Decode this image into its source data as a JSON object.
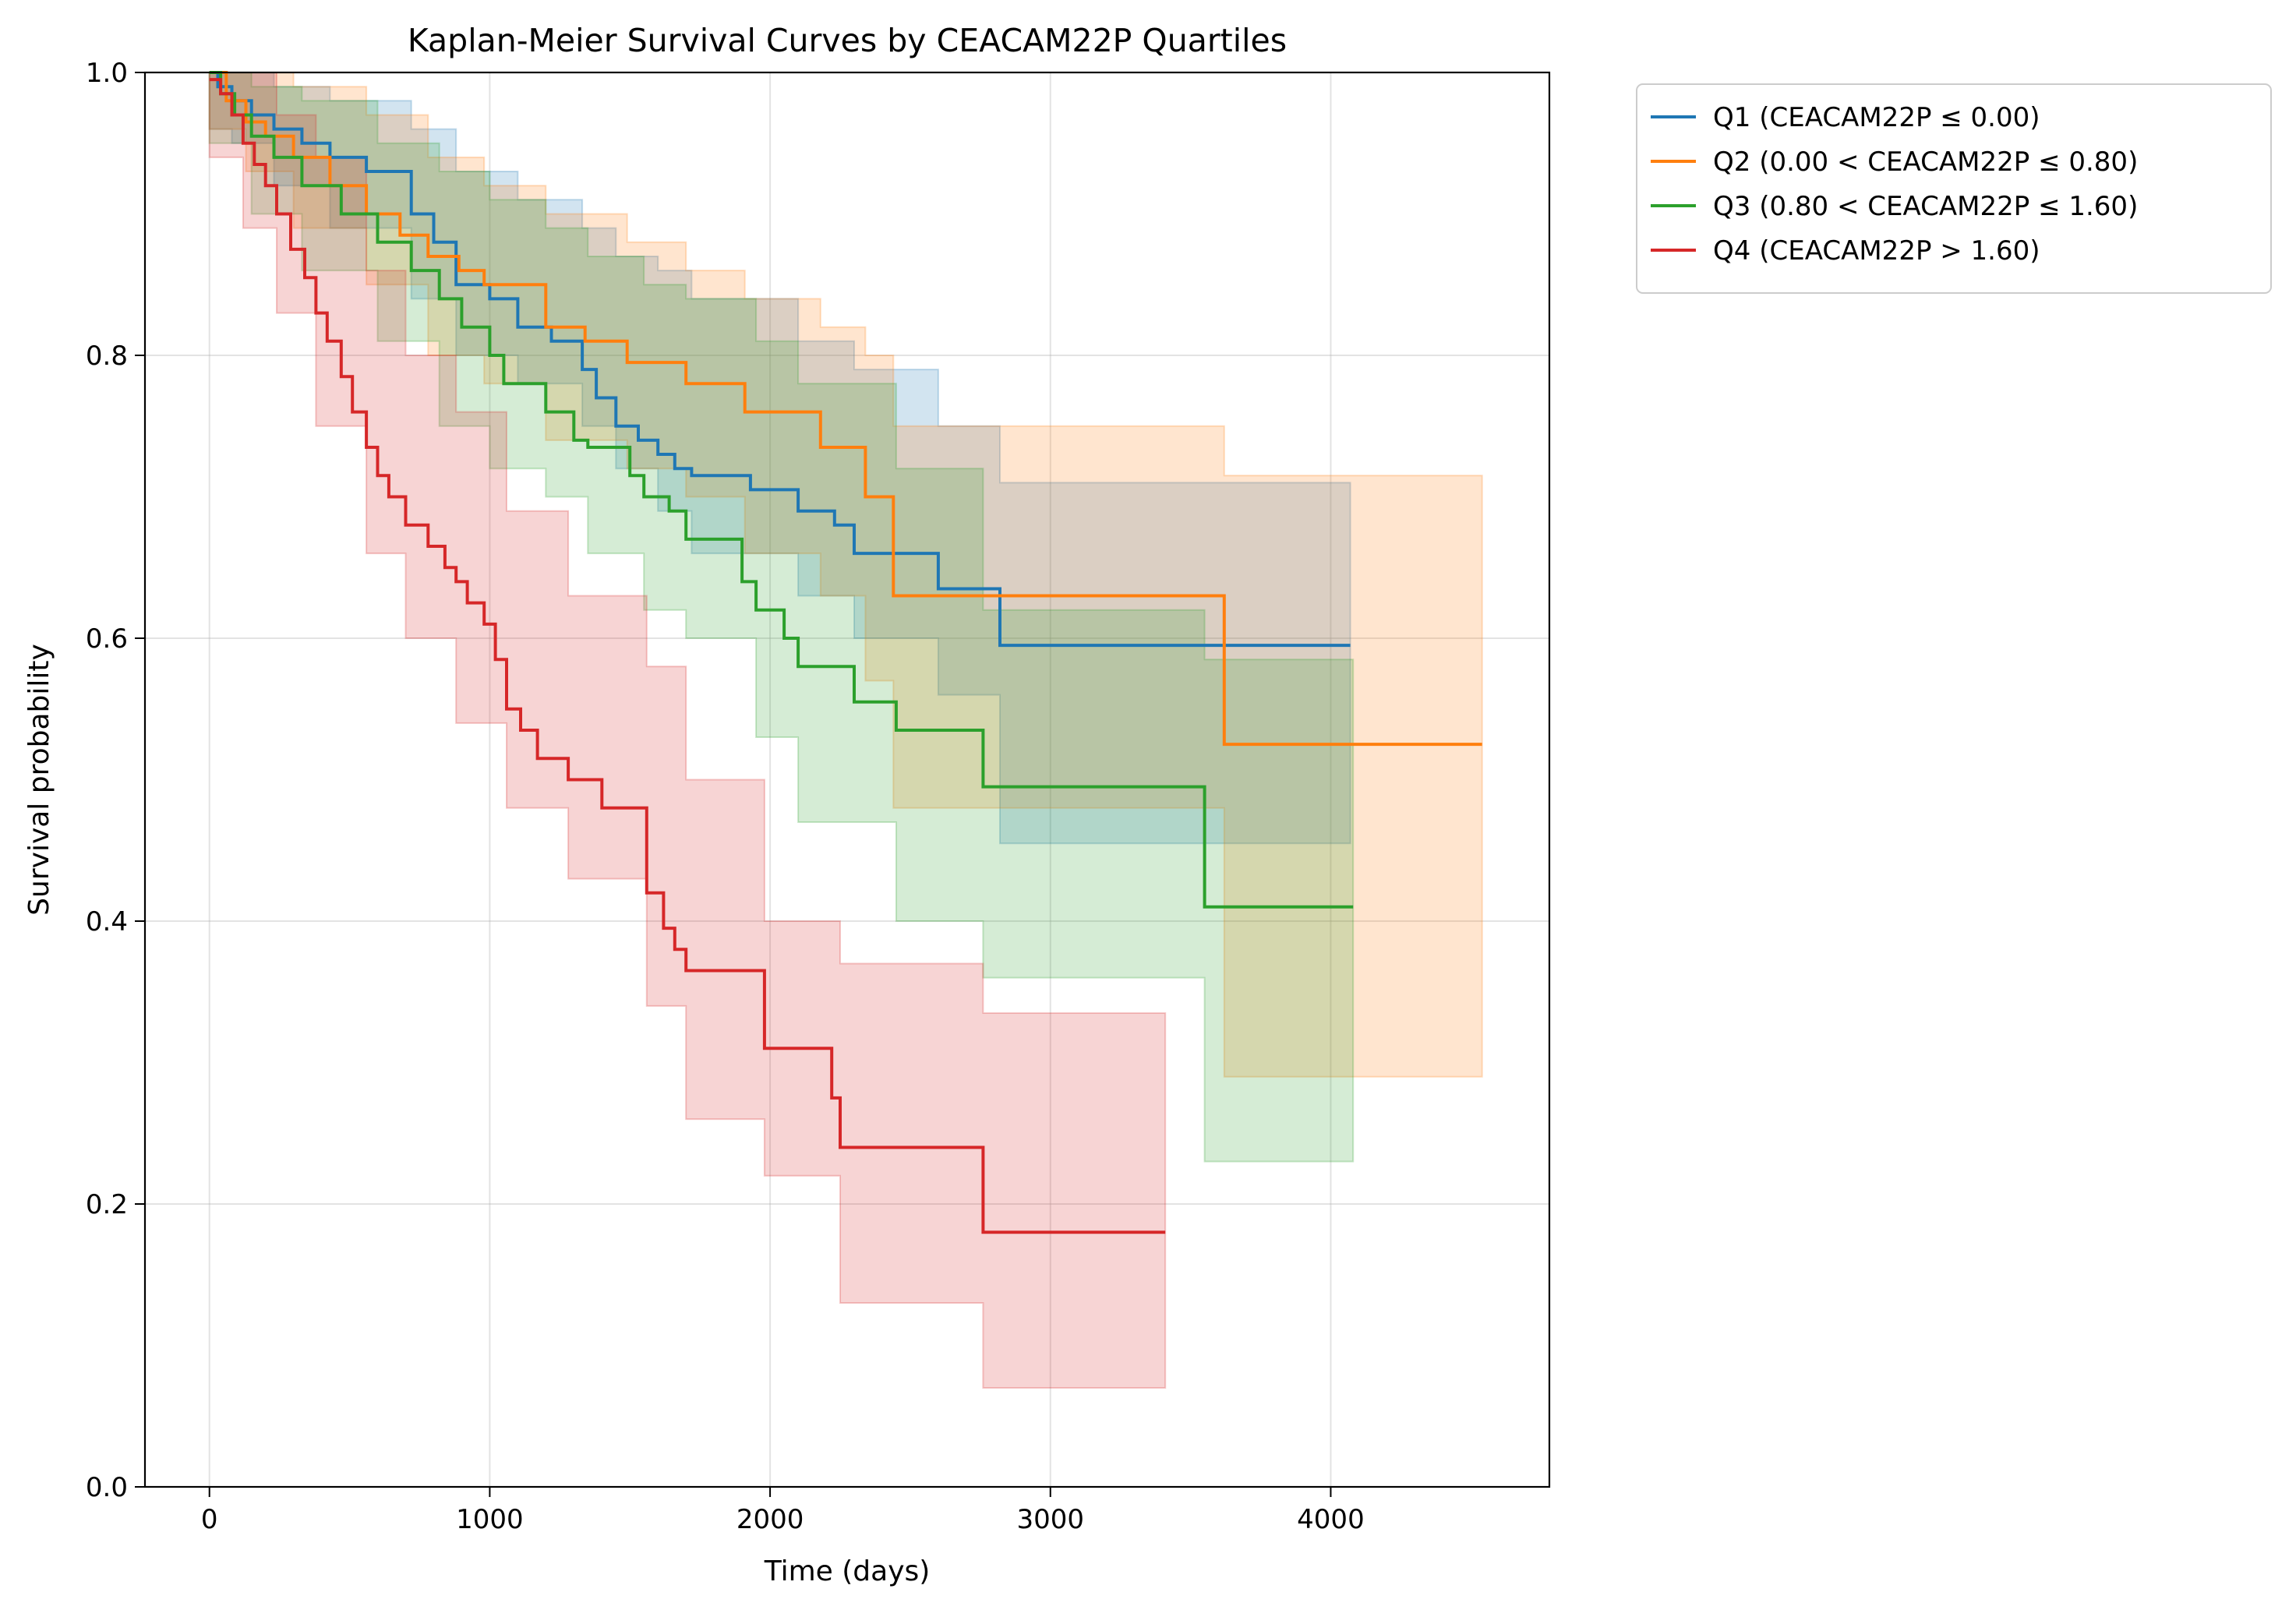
{
  "chart_data": {
    "type": "line",
    "title": "Kaplan-Meier Survival Curves by CEACAM22P Quartiles",
    "xlabel": "Time (days)",
    "ylabel": "Survival probability",
    "xlim": [
      -230,
      4780
    ],
    "ylim": [
      0,
      1.0
    ],
    "xticks": [
      0,
      1000,
      2000,
      3000,
      4000
    ],
    "xtick_labels": [
      "0",
      "1000",
      "2000",
      "3000",
      "4000"
    ],
    "yticks": [
      0.0,
      0.2,
      0.4,
      0.6,
      0.8,
      1.0
    ],
    "ytick_labels": [
      "0.0",
      "0.2",
      "0.4",
      "0.6",
      "0.8",
      "1.0"
    ],
    "grid": true,
    "legend_placement": "outside-top-right",
    "series": [
      {
        "name": "Q1 (CEACAM22P ≤ 0.00)",
        "color": "#1f77b4",
        "x": [
          0,
          30,
          80,
          150,
          230,
          330,
          430,
          560,
          720,
          800,
          880,
          1000,
          1100,
          1220,
          1330,
          1380,
          1450,
          1530,
          1600,
          1660,
          1720,
          1930,
          2100,
          2230,
          2300,
          2600,
          2820,
          4070
        ],
        "y": [
          1.0,
          0.99,
          0.98,
          0.97,
          0.96,
          0.95,
          0.94,
          0.93,
          0.9,
          0.88,
          0.85,
          0.84,
          0.82,
          0.81,
          0.79,
          0.77,
          0.75,
          0.74,
          0.73,
          0.72,
          0.715,
          0.705,
          0.69,
          0.68,
          0.66,
          0.635,
          0.595,
          0.595
        ],
        "ci_x": [
          0,
          80,
          230,
          430,
          720,
          880,
          1100,
          1330,
          1450,
          1600,
          1720,
          2100,
          2300,
          2600,
          2820,
          4070
        ],
        "ci_lower": [
          0.96,
          0.95,
          0.92,
          0.89,
          0.84,
          0.8,
          0.78,
          0.75,
          0.72,
          0.69,
          0.66,
          0.63,
          0.6,
          0.56,
          0.455,
          0.455
        ],
        "ci_upper": [
          1.0,
          1.0,
          0.99,
          0.98,
          0.96,
          0.93,
          0.91,
          0.89,
          0.87,
          0.86,
          0.84,
          0.81,
          0.79,
          0.75,
          0.71,
          0.71
        ]
      },
      {
        "name": "Q2 (0.00 < CEACAM22P ≤ 0.80)",
        "color": "#ff7f0e",
        "x": [
          0,
          60,
          130,
          200,
          300,
          430,
          560,
          680,
          780,
          890,
          980,
          1200,
          1340,
          1490,
          1700,
          1910,
          2180,
          2340,
          2440,
          3620,
          4540
        ],
        "y": [
          1.0,
          0.98,
          0.965,
          0.955,
          0.94,
          0.92,
          0.9,
          0.885,
          0.87,
          0.86,
          0.85,
          0.82,
          0.81,
          0.795,
          0.78,
          0.76,
          0.735,
          0.7,
          0.63,
          0.525,
          0.525
        ],
        "ci_x": [
          0,
          130,
          300,
          560,
          780,
          980,
          1200,
          1490,
          1700,
          1910,
          2180,
          2340,
          2440,
          3620,
          4540
        ],
        "ci_lower": [
          0.96,
          0.93,
          0.89,
          0.85,
          0.8,
          0.78,
          0.74,
          0.72,
          0.7,
          0.66,
          0.63,
          0.57,
          0.48,
          0.29,
          0.29
        ],
        "ci_upper": [
          1.0,
          1.0,
          0.99,
          0.97,
          0.94,
          0.92,
          0.9,
          0.88,
          0.86,
          0.84,
          0.82,
          0.8,
          0.75,
          0.715,
          0.715
        ]
      },
      {
        "name": "Q3 (0.80 < CEACAM22P ≤ 1.60)",
        "color": "#2ca02c",
        "x": [
          0,
          40,
          90,
          150,
          230,
          330,
          470,
          600,
          720,
          820,
          900,
          1000,
          1050,
          1200,
          1300,
          1350,
          1500,
          1550,
          1640,
          1700,
          1900,
          1950,
          2050,
          2100,
          2300,
          2450,
          2760,
          3550,
          4080
        ],
        "y": [
          1.0,
          0.985,
          0.97,
          0.955,
          0.94,
          0.92,
          0.9,
          0.88,
          0.86,
          0.84,
          0.82,
          0.8,
          0.78,
          0.76,
          0.74,
          0.735,
          0.715,
          0.7,
          0.69,
          0.67,
          0.64,
          0.62,
          0.6,
          0.58,
          0.555,
          0.535,
          0.495,
          0.41,
          0.41
        ],
        "ci_x": [
          0,
          150,
          330,
          600,
          820,
          1000,
          1200,
          1350,
          1550,
          1700,
          1950,
          2100,
          2450,
          2760,
          3550,
          4080
        ],
        "ci_lower": [
          0.95,
          0.9,
          0.86,
          0.81,
          0.75,
          0.72,
          0.7,
          0.66,
          0.62,
          0.6,
          0.53,
          0.47,
          0.4,
          0.36,
          0.23,
          0.23
        ],
        "ci_upper": [
          1.0,
          0.99,
          0.98,
          0.95,
          0.93,
          0.91,
          0.89,
          0.87,
          0.85,
          0.84,
          0.81,
          0.78,
          0.72,
          0.62,
          0.585,
          0.585
        ]
      },
      {
        "name": "Q4 (CEACAM22P > 1.60)",
        "color": "#d62728",
        "x": [
          0,
          40,
          80,
          120,
          160,
          200,
          240,
          290,
          340,
          380,
          420,
          470,
          510,
          560,
          600,
          640,
          700,
          780,
          840,
          880,
          920,
          980,
          1020,
          1060,
          1110,
          1170,
          1280,
          1400,
          1560,
          1620,
          1660,
          1700,
          1980,
          2220,
          2250,
          2760,
          3410
        ],
        "y": [
          0.995,
          0.985,
          0.97,
          0.95,
          0.935,
          0.92,
          0.9,
          0.875,
          0.855,
          0.83,
          0.81,
          0.785,
          0.76,
          0.735,
          0.715,
          0.7,
          0.68,
          0.665,
          0.65,
          0.64,
          0.625,
          0.61,
          0.585,
          0.55,
          0.535,
          0.515,
          0.5,
          0.48,
          0.42,
          0.395,
          0.38,
          0.365,
          0.31,
          0.275,
          0.24,
          0.18,
          0.18
        ],
        "ci_x": [
          0,
          120,
          240,
          380,
          560,
          700,
          880,
          1060,
          1280,
          1560,
          1700,
          1980,
          2250,
          2760,
          3410
        ],
        "ci_lower": [
          0.94,
          0.89,
          0.83,
          0.75,
          0.66,
          0.6,
          0.54,
          0.48,
          0.43,
          0.34,
          0.26,
          0.22,
          0.13,
          0.07,
          0.07
        ],
        "ci_upper": [
          1.0,
          1.0,
          0.97,
          0.94,
          0.86,
          0.8,
          0.76,
          0.69,
          0.63,
          0.58,
          0.5,
          0.4,
          0.37,
          0.335,
          0.335
        ]
      }
    ]
  }
}
